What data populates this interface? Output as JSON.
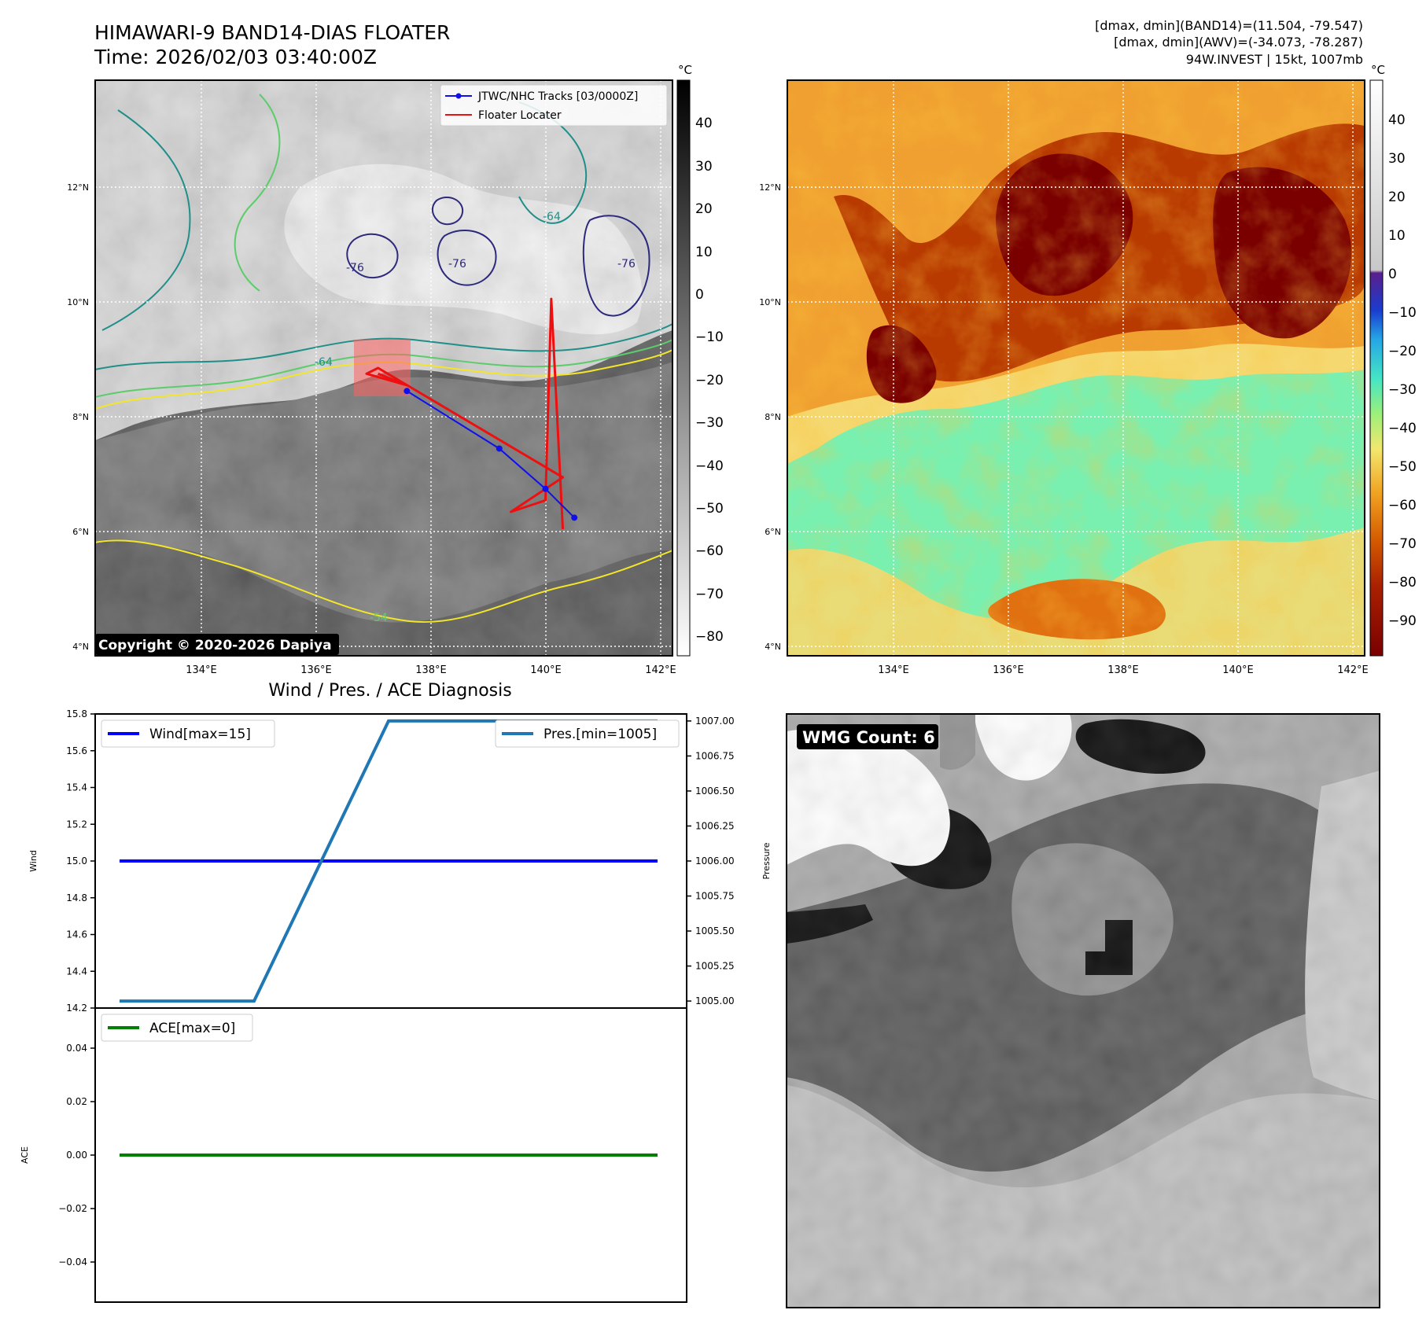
{
  "header": {
    "title": "HIMAWARI-9 BAND14-DIAS FLOATER",
    "time": "Time: 2026/02/03 03:40:00Z",
    "info_line1": "[dmax, dmin](BAND14)=(11.504, -79.547)",
    "info_line2": "[dmax, dmin](AWV)=(-34.073, -78.287)",
    "info_line3": "94W.INVEST | 15kt, 1007mb"
  },
  "colors": {
    "track": "#1010ee",
    "floater": "#ee1010",
    "wind": "#0000ff",
    "pressure": "#1f77b4",
    "ace": "#008000",
    "contour_purple": "#2d2a7d",
    "contour_teal": "#1f8f8a",
    "contour_green": "#5ccc6a",
    "contour_yellow": "#f2e52a"
  },
  "map_common": {
    "lat_labels": [
      "12°N",
      "10°N",
      "8°N",
      "6°N",
      "4°N"
    ],
    "lon_labels": [
      "134°E",
      "136°E",
      "138°E",
      "140°E",
      "142°E"
    ]
  },
  "map_left": {
    "legend": [
      "JTWC/NHC Tracks [03/0000Z]",
      "Floater Locater"
    ],
    "copyright": "Copyright © 2020-2026 Dapiya",
    "contour_labels": [
      "-76",
      "-76",
      "-64",
      "-76",
      "-64",
      "-54"
    ],
    "colorbar_unit": "°C",
    "colorbar_ticks": [
      "40",
      "30",
      "20",
      "10",
      "0",
      "−10",
      "−20",
      "−30",
      "−40",
      "−50",
      "−60",
      "−70",
      "−80"
    ]
  },
  "map_right": {
    "colorbar_unit": "°C",
    "colorbar_ticks": [
      "40",
      "30",
      "20",
      "10",
      "0",
      "−10",
      "−20",
      "−30",
      "−40",
      "−50",
      "−60",
      "−70",
      "−80",
      "−90"
    ]
  },
  "wmg": {
    "label": "WMG Count: 6"
  },
  "chart_data": [
    {
      "type": "line",
      "title": "Wind / Pres. / ACE Diagnosis",
      "x": [
        0,
        1,
        2,
        3,
        4
      ],
      "series": [
        {
          "name": "Wind[max=15]",
          "axis": "left",
          "values": [
            15,
            15,
            15,
            15,
            15
          ]
        },
        {
          "name": "Pres.[min=1005]",
          "axis": "right",
          "values": [
            1005,
            1005,
            1007,
            1007,
            1007
          ]
        }
      ],
      "ylabel": "Wind",
      "ylim": [
        14.2,
        15.8
      ],
      "yticks": [
        "15.8",
        "15.6",
        "15.4",
        "15.2",
        "15.0",
        "14.8",
        "14.6",
        "14.4",
        "14.2"
      ],
      "y2label": "Pressure",
      "y2lim": [
        1004.95,
        1007.05
      ],
      "y2ticks": [
        "1007.00",
        "1006.75",
        "1006.50",
        "1006.25",
        "1006.00",
        "1005.75",
        "1005.50",
        "1005.25",
        "1005.00"
      ],
      "legend": "top-left / top-right"
    },
    {
      "type": "line",
      "x": [
        0,
        1,
        2,
        3,
        4
      ],
      "series": [
        {
          "name": "ACE[max=0]",
          "values": [
            0,
            0,
            0,
            0,
            0
          ]
        }
      ],
      "ylabel": "ACE",
      "ylim": [
        -0.055,
        0.055
      ],
      "yticks": [
        "0.04",
        "0.02",
        "0.00",
        "−0.02",
        "−0.04"
      ],
      "legend": "top-left"
    },
    {
      "type": "line",
      "title": "JTWC/NHC Tracks [03/0000Z]",
      "x_unit": "°E",
      "y_unit": "°N",
      "xlim": [
        132.2,
        142.2
      ],
      "ylim": [
        4.0,
        14.0
      ],
      "series": [
        {
          "name": "JTWC/NHC Tracks [03/0000Z]",
          "lon": [
            140.5,
            140.0,
            139.2,
            137.6
          ],
          "lat": [
            6.4,
            6.9,
            7.6,
            8.6
          ]
        },
        {
          "name": "Floater Locater",
          "lon": [
            140.3,
            140.1,
            140.0,
            139.4,
            140.3,
            137.1,
            136.9,
            137.6,
            137.1
          ],
          "lat": [
            6.2,
            10.2,
            6.7,
            6.5,
            7.1,
            9.0,
            8.9,
            8.7,
            8.9
          ]
        }
      ]
    }
  ]
}
